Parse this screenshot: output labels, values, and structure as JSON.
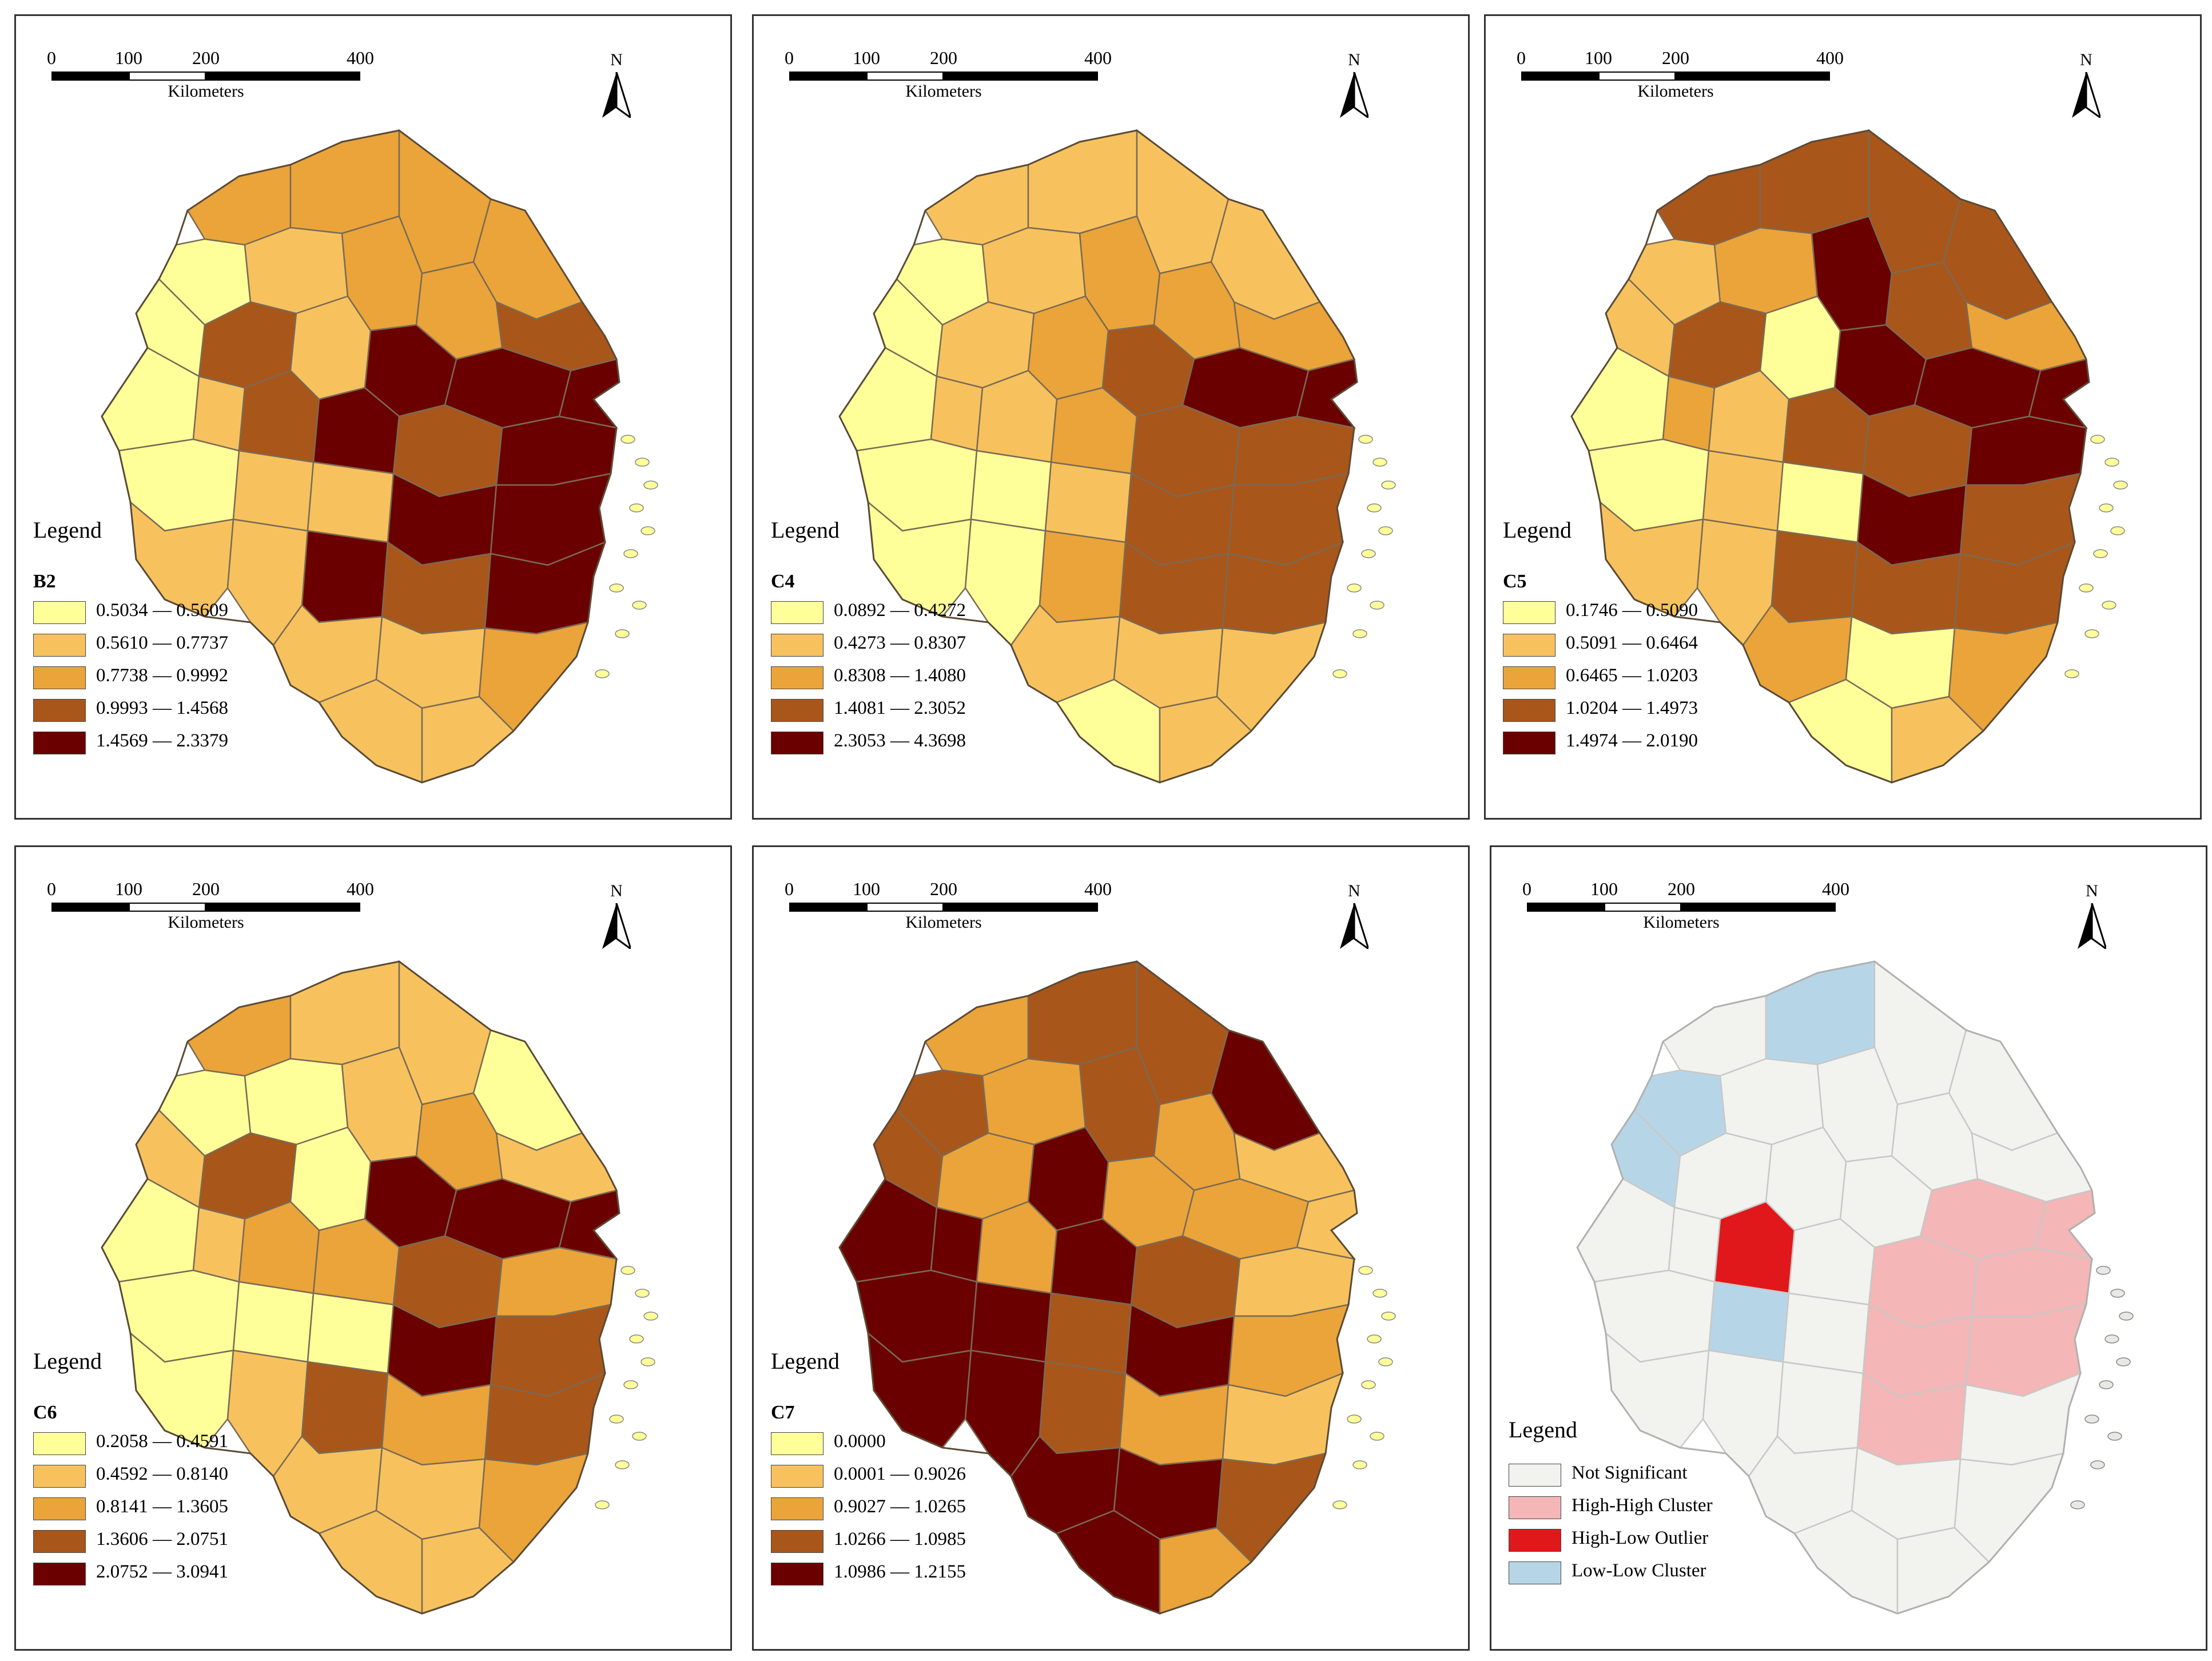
{
  "common": {
    "scale_ticks": [
      "0",
      "100",
      "200",
      "400"
    ],
    "scale_unit": "Kilometers",
    "north_label": "N",
    "legend_title": "Legend"
  },
  "panels": [
    {
      "variable": "B2",
      "classes": [
        {
          "label": "0.5034 — 0.5609",
          "color": "#ffff99"
        },
        {
          "label": "0.5610 — 0.7737",
          "color": "#f7c25e"
        },
        {
          "label": "0.7738 — 0.9992",
          "color": "#eaa43a"
        },
        {
          "label": "0.9993 — 1.4568",
          "color": "#a9561b"
        },
        {
          "label": "1.4569 — 2.3379",
          "color": "#6b0000"
        }
      ]
    },
    {
      "variable": "C4",
      "classes": [
        {
          "label": "0.0892 — 0.4272",
          "color": "#ffff99"
        },
        {
          "label": "0.4273 — 0.8307",
          "color": "#f7c25e"
        },
        {
          "label": "0.8308 — 1.4080",
          "color": "#eaa43a"
        },
        {
          "label": "1.4081 — 2.3052",
          "color": "#a9561b"
        },
        {
          "label": "2.3053 — 4.3698",
          "color": "#6b0000"
        }
      ]
    },
    {
      "variable": "C5",
      "classes": [
        {
          "label": "0.1746 — 0.5090",
          "color": "#ffff99"
        },
        {
          "label": "0.5091 — 0.6464",
          "color": "#f7c25e"
        },
        {
          "label": "0.6465 — 1.0203",
          "color": "#eaa43a"
        },
        {
          "label": "1.0204 — 1.4973",
          "color": "#a9561b"
        },
        {
          "label": "1.4974 — 2.0190",
          "color": "#6b0000"
        }
      ]
    },
    {
      "variable": "C6",
      "classes": [
        {
          "label": "0.2058 — 0.4591",
          "color": "#ffff99"
        },
        {
          "label": "0.4592 — 0.8140",
          "color": "#f7c25e"
        },
        {
          "label": "0.8141 — 1.3605",
          "color": "#eaa43a"
        },
        {
          "label": "1.3606 — 2.0751",
          "color": "#a9561b"
        },
        {
          "label": "2.0752 — 3.0941",
          "color": "#6b0000"
        }
      ]
    },
    {
      "variable": "C7",
      "classes": [
        {
          "label": "0.0000",
          "color": "#ffff99"
        },
        {
          "label": "0.0001 — 0.9026",
          "color": "#f7c25e"
        },
        {
          "label": "0.9027 — 1.0265",
          "color": "#eaa43a"
        },
        {
          "label": "1.0266 — 1.0985",
          "color": "#a9561b"
        },
        {
          "label": "1.0986 — 1.2155",
          "color": "#6b0000"
        }
      ]
    },
    {
      "variable": "",
      "classes": [
        {
          "label": "Not Significant",
          "color": "#f2f2ee"
        },
        {
          "label": "High-High Cluster",
          "color": "#f4b6b6"
        },
        {
          "label": "High-Low Outlier",
          "color": "#e0181b"
        },
        {
          "label": "Low-Low Cluster",
          "color": "#b6d6e8"
        }
      ]
    }
  ]
}
